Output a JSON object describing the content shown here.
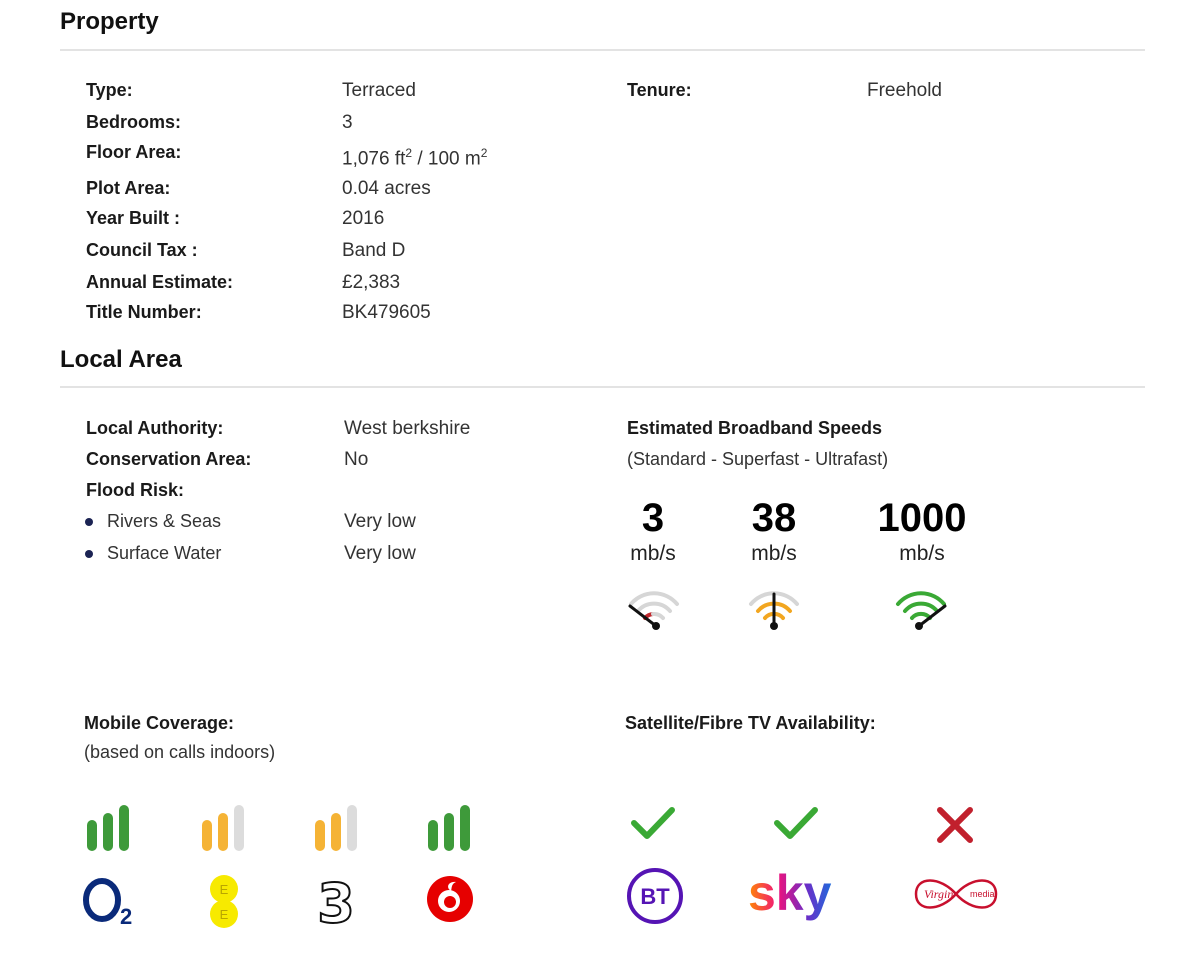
{
  "property": {
    "heading": "Property",
    "rows": [
      {
        "label": "Type:",
        "value": "Terraced"
      },
      {
        "label": "Bedrooms:",
        "value": "3"
      },
      {
        "label": "Floor Area:",
        "value_ft": "1,076 ft",
        "value_sep": " / 100 m",
        "sup": "2"
      },
      {
        "label": "Plot Area:",
        "value": "0.04 acres"
      },
      {
        "label": "Year Built :",
        "value": "2016"
      },
      {
        "label": "Council Tax :",
        "value": "Band D"
      },
      {
        "label": "Annual Estimate:",
        "value": "£2,383"
      },
      {
        "label": "Title Number:",
        "value": "BK479605"
      }
    ],
    "tenure": {
      "label": "Tenure:",
      "value": "Freehold"
    }
  },
  "local_area": {
    "heading": "Local Area",
    "authority": {
      "label": "Local Authority:",
      "value": "West berkshire"
    },
    "conservation": {
      "label": "Conservation Area:",
      "value": "No"
    },
    "flood": {
      "label": "Flood Risk:",
      "items": [
        {
          "label": "Rivers & Seas",
          "value": "Very low"
        },
        {
          "label": "Surface Water",
          "value": "Very low"
        }
      ]
    },
    "broadband": {
      "title": "Estimated Broadband Speeds",
      "subtitle": "(Standard - Superfast - Ultrafast)",
      "speeds": [
        {
          "value": "3",
          "unit": "mb/s",
          "level": "low",
          "color": "#c0272d"
        },
        {
          "value": "38",
          "unit": "mb/s",
          "level": "medium",
          "color": "#f2a620"
        },
        {
          "value": "1000",
          "unit": "mb/s",
          "level": "high",
          "color": "#3aa935"
        }
      ]
    },
    "mobile": {
      "title": "Mobile Coverage:",
      "subtitle": "(based on calls indoors)",
      "operators": [
        {
          "name": "O2",
          "bars_filled": 3,
          "color": "#3e9a3a"
        },
        {
          "name": "EE",
          "bars_filled": 2,
          "color": "#f5b335"
        },
        {
          "name": "Three",
          "bars_filled": 2,
          "color": "#f5b335"
        },
        {
          "name": "Vodafone",
          "bars_filled": 3,
          "color": "#3e9a3a"
        }
      ]
    },
    "tv": {
      "title": "Satellite/Fibre TV Availability:",
      "providers": [
        {
          "name": "BT",
          "available": true
        },
        {
          "name": "sky",
          "available": true
        },
        {
          "name": "Virgin media",
          "available": false
        }
      ]
    }
  }
}
